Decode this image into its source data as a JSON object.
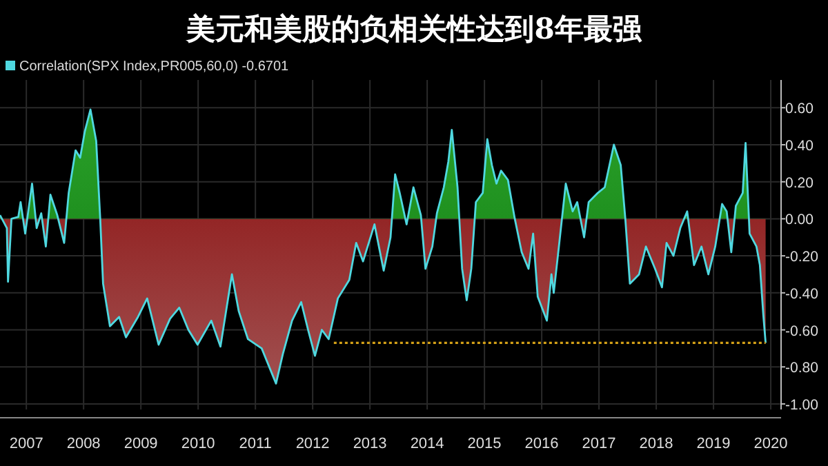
{
  "chart_data": {
    "type": "area",
    "title": "美元和美股的负相关性达到8年最强",
    "legend": "top left",
    "grid": true,
    "xlim": [
      2007.04,
      2020.68
    ],
    "xticks": [
      {
        "value": 2007.5,
        "label": "2007"
      },
      {
        "value": 2008.5,
        "label": "2008"
      },
      {
        "value": 2009.5,
        "label": "2009"
      },
      {
        "value": 2010.5,
        "label": "2010"
      },
      {
        "value": 2011.5,
        "label": "2011"
      },
      {
        "value": 2012.5,
        "label": "2012"
      },
      {
        "value": 2013.5,
        "label": "2013"
      },
      {
        "value": 2014.5,
        "label": "2014"
      },
      {
        "value": 2015.5,
        "label": "2015"
      },
      {
        "value": 2016.5,
        "label": "2016"
      },
      {
        "value": 2017.5,
        "label": "2017"
      },
      {
        "value": 2018.5,
        "label": "2018"
      },
      {
        "value": 2019.5,
        "label": "2019"
      },
      {
        "value": 2020.5,
        "label": "2020"
      }
    ],
    "ylim": [
      -1.03,
      0.75
    ],
    "yticks": [
      {
        "value": 0.6,
        "label": "0.60"
      },
      {
        "value": 0.4,
        "label": "0.40"
      },
      {
        "value": 0.2,
        "label": "0.20"
      },
      {
        "value": 0,
        "label": "0.00"
      },
      {
        "value": -0.2,
        "label": "-0.20"
      },
      {
        "value": -0.4,
        "label": "-0.40"
      },
      {
        "value": -0.6,
        "label": "-0.60"
      },
      {
        "value": -0.8,
        "label": "-0.80"
      },
      {
        "value": -1.0,
        "label": "-1.00"
      }
    ],
    "series": [
      {
        "name": "Correlation(SPX Index,PR005,60,0) -0.6701",
        "color": "#4fd8e0",
        "x": [
          2007.04,
          2007.16,
          2007.18,
          2007.24,
          2007.36,
          2007.4,
          2007.48,
          2007.6,
          2007.68,
          2007.76,
          2007.84,
          2007.92,
          2008.04,
          2008.16,
          2008.24,
          2008.36,
          2008.44,
          2008.52,
          2008.62,
          2008.72,
          2008.79,
          2008.84,
          2008.96,
          2009.12,
          2009.24,
          2009.45,
          2009.61,
          2009.81,
          2010.01,
          2010.17,
          2010.33,
          2010.49,
          2010.73,
          2010.89,
          2011.09,
          2011.21,
          2011.37,
          2011.61,
          2011.86,
          2011.98,
          2012.14,
          2012.3,
          2012.42,
          2012.54,
          2012.66,
          2012.78,
          2012.94,
          2013.14,
          2013.26,
          2013.38,
          2013.58,
          2013.74,
          2013.86,
          2013.94,
          2014.02,
          2014.14,
          2014.26,
          2014.39,
          2014.47,
          2014.59,
          2014.67,
          2014.79,
          2014.87,
          2014.93,
          2015.03,
          2015.11,
          2015.19,
          2015.27,
          2015.35,
          2015.47,
          2015.55,
          2015.63,
          2015.71,
          2015.79,
          2015.91,
          2016.03,
          2016.15,
          2016.27,
          2016.35,
          2016.43,
          2016.59,
          2016.67,
          2016.71,
          2016.8,
          2016.92,
          2017.04,
          2017.12,
          2017.24,
          2017.32,
          2017.48,
          2017.6,
          2017.76,
          2017.88,
          2017.96,
          2018.04,
          2018.2,
          2018.32,
          2018.48,
          2018.6,
          2018.68,
          2018.8,
          2018.92,
          2019.04,
          2019.16,
          2019.29,
          2019.41,
          2019.53,
          2019.65,
          2019.73,
          2019.81,
          2019.89,
          2020.01,
          2020.06,
          2020.13,
          2020.25,
          2020.31,
          2020.37,
          2020.41
        ],
        "values": [
          0.02,
          -0.05,
          -0.34,
          0.0,
          0.01,
          0.09,
          -0.08,
          0.19,
          -0.05,
          0.03,
          -0.15,
          0.13,
          0.02,
          -0.13,
          0.14,
          0.37,
          0.33,
          0.47,
          0.59,
          0.42,
          0.0,
          -0.35,
          -0.58,
          -0.53,
          -0.64,
          -0.53,
          -0.43,
          -0.68,
          -0.54,
          -0.48,
          -0.6,
          -0.68,
          -0.55,
          -0.69,
          -0.3,
          -0.5,
          -0.65,
          -0.7,
          -0.89,
          -0.73,
          -0.55,
          -0.45,
          -0.6,
          -0.74,
          -0.6,
          -0.65,
          -0.43,
          -0.33,
          -0.13,
          -0.23,
          -0.03,
          -0.28,
          -0.1,
          0.24,
          0.14,
          -0.03,
          0.17,
          0.02,
          -0.27,
          -0.15,
          0.03,
          0.17,
          0.31,
          0.48,
          0.17,
          -0.27,
          -0.44,
          -0.27,
          0.09,
          0.14,
          0.43,
          0.29,
          0.19,
          0.26,
          0.21,
          0.0,
          -0.18,
          -0.27,
          -0.08,
          -0.42,
          -0.55,
          -0.3,
          -0.4,
          -0.15,
          0.19,
          0.04,
          0.09,
          -0.1,
          0.09,
          0.14,
          0.17,
          0.4,
          0.29,
          0.0,
          -0.35,
          -0.3,
          -0.15,
          -0.27,
          -0.37,
          -0.13,
          -0.2,
          -0.05,
          0.04,
          -0.25,
          -0.15,
          -0.3,
          -0.15,
          0.08,
          0.04,
          -0.18,
          0.07,
          0.14,
          0.41,
          -0.08,
          -0.15,
          -0.25,
          -0.52,
          -0.67
        ]
      },
      {
        "type": "line",
        "line_style": "dotted",
        "color": "#d4a017",
        "x": [
          2012.87,
          2020.41
        ],
        "values": [
          -0.67,
          -0.67
        ]
      }
    ]
  }
}
